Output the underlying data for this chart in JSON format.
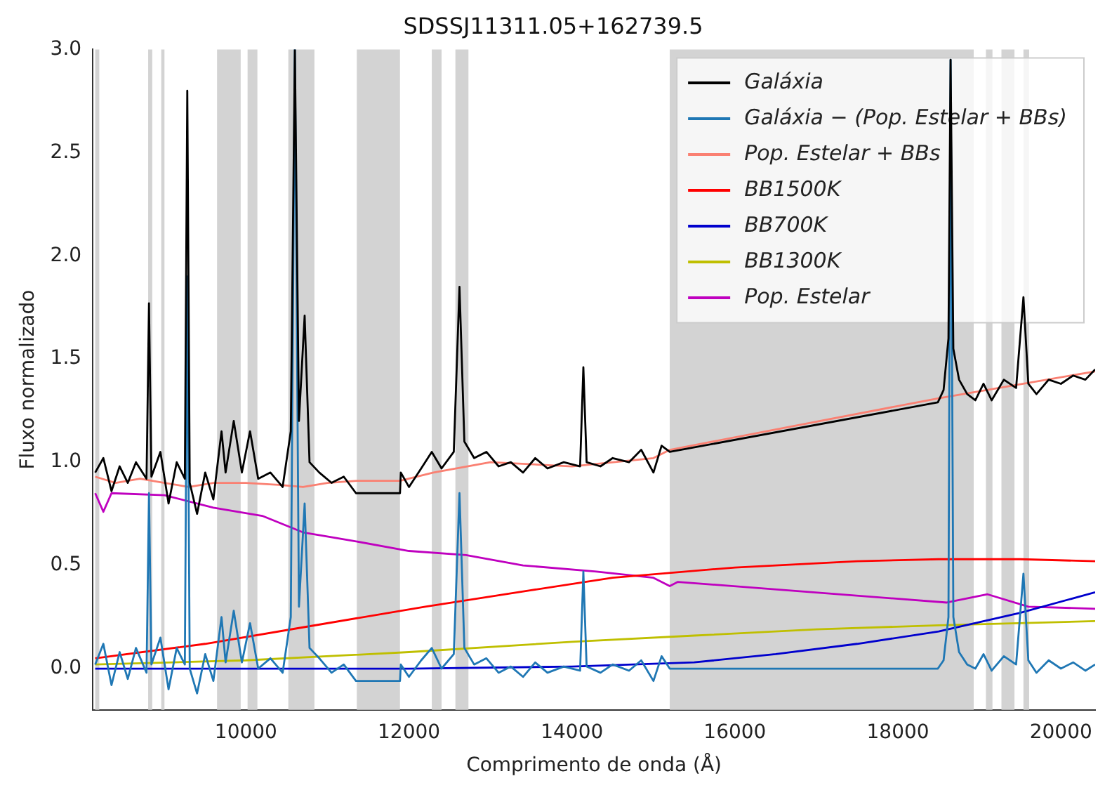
{
  "chart_data": {
    "type": "line",
    "title": "SDSSJ11311.05+162739.5",
    "xlabel": "Comprimento de onda (Å)",
    "ylabel": "Fluxo normalizado",
    "xlim": [
      8120,
      20420
    ],
    "ylim": [
      -0.2,
      3.0
    ],
    "xticks": [
      10000,
      12000,
      14000,
      16000,
      18000,
      20000
    ],
    "yticks": [
      {
        "value": 0,
        "label": "0.0"
      },
      {
        "value": 0.5,
        "label": "0.5"
      },
      {
        "value": 1,
        "label": "1.0"
      },
      {
        "value": 1.5,
        "label": "1.5"
      },
      {
        "value": 2,
        "label": "2.0"
      },
      {
        "value": 2.5,
        "label": "2.5"
      },
      {
        "value": 3,
        "label": "3.0"
      }
    ],
    "grid": false,
    "legend": "top right",
    "marker": "none",
    "line_style": "solid",
    "bands": [
      {
        "axis": "x",
        "from": 8150,
        "to": 8200,
        "color": "#d3d3d3"
      },
      {
        "axis": "x",
        "from": 8800,
        "to": 8850,
        "color": "#d3d3d3"
      },
      {
        "axis": "x",
        "from": 8960,
        "to": 9000,
        "color": "#d3d3d3"
      },
      {
        "axis": "x",
        "from": 9645,
        "to": 9935,
        "color": "#d3d3d3"
      },
      {
        "axis": "x",
        "from": 10020,
        "to": 10140,
        "color": "#d3d3d3"
      },
      {
        "axis": "x",
        "from": 10520,
        "to": 10840,
        "color": "#d3d3d3"
      },
      {
        "axis": "x",
        "from": 11360,
        "to": 11890,
        "color": "#d3d3d3"
      },
      {
        "axis": "x",
        "from": 12280,
        "to": 12400,
        "color": "#d3d3d3"
      },
      {
        "axis": "x",
        "from": 12570,
        "to": 12730,
        "color": "#d3d3d3"
      },
      {
        "axis": "x",
        "from": 15200,
        "to": 18930,
        "color": "#d3d3d3"
      },
      {
        "axis": "x",
        "from": 19080,
        "to": 19160,
        "color": "#d3d3d3"
      },
      {
        "axis": "x",
        "from": 19270,
        "to": 19430,
        "color": "#d3d3d3"
      },
      {
        "axis": "x",
        "from": 19540,
        "to": 19610,
        "color": "#d3d3d3"
      }
    ],
    "series": [
      {
        "name": "Galáxia",
        "color": "#000000",
        "x": [
          8150,
          8250,
          8350,
          8450,
          8550,
          8650,
          8780,
          8810,
          8840,
          8950,
          9050,
          9150,
          9250,
          9280,
          9310,
          9400,
          9500,
          9600,
          9700,
          9750,
          9850,
          9950,
          10050,
          10150,
          10300,
          10450,
          10550,
          10600,
          10650,
          10720,
          10780,
          10900,
          11050,
          11200,
          11350,
          11360,
          11890,
          11900,
          12000,
          12150,
          12280,
          12400,
          12550,
          12620,
          12680,
          12800,
          12950,
          13100,
          13250,
          13400,
          13550,
          13700,
          13900,
          14100,
          14140,
          14180,
          14350,
          14500,
          14700,
          14850,
          15000,
          15100,
          15200,
          18490,
          18560,
          18620,
          18646,
          18680,
          18750,
          18850,
          18950,
          19050,
          19150,
          19300,
          19450,
          19540,
          19600,
          19700,
          19850,
          20000,
          20150,
          20300,
          20420
        ],
        "values": [
          0.95,
          1.02,
          0.86,
          0.98,
          0.9,
          1.0,
          0.92,
          1.77,
          0.93,
          1.05,
          0.8,
          1.0,
          0.92,
          2.8,
          0.9,
          0.75,
          0.95,
          0.82,
          1.15,
          0.95,
          1.2,
          0.95,
          1.15,
          0.92,
          0.95,
          0.88,
          1.15,
          3.0,
          1.2,
          1.71,
          1.0,
          0.95,
          0.9,
          0.93,
          0.85,
          0.85,
          0.85,
          0.95,
          0.88,
          0.97,
          1.05,
          0.97,
          1.05,
          1.85,
          1.1,
          1.02,
          1.05,
          0.98,
          1.0,
          0.95,
          1.02,
          0.97,
          1.0,
          0.98,
          1.46,
          1.0,
          0.98,
          1.02,
          1.0,
          1.06,
          0.95,
          1.08,
          1.05,
          1.29,
          1.35,
          1.6,
          2.95,
          1.55,
          1.4,
          1.33,
          1.3,
          1.38,
          1.3,
          1.4,
          1.36,
          1.8,
          1.38,
          1.33,
          1.4,
          1.38,
          1.42,
          1.4,
          1.45
        ]
      },
      {
        "name": "Galáxia − (Pop. Estelar + BBs)",
        "color": "#1f77b4",
        "x": [
          8150,
          8250,
          8350,
          8450,
          8550,
          8650,
          8780,
          8810,
          8840,
          8950,
          9050,
          9150,
          9250,
          9280,
          9310,
          9400,
          9500,
          9600,
          9700,
          9750,
          9850,
          9950,
          10050,
          10150,
          10300,
          10450,
          10550,
          10600,
          10650,
          10720,
          10780,
          10900,
          11050,
          11200,
          11350,
          11360,
          11890,
          11900,
          12000,
          12150,
          12280,
          12400,
          12550,
          12620,
          12680,
          12800,
          12950,
          13100,
          13250,
          13400,
          13550,
          13700,
          13900,
          14100,
          14140,
          14180,
          14350,
          14500,
          14700,
          14850,
          15000,
          15100,
          15200,
          18490,
          18560,
          18620,
          18646,
          18680,
          18750,
          18850,
          18950,
          19050,
          19150,
          19300,
          19450,
          19540,
          19600,
          19700,
          19850,
          20000,
          20150,
          20300,
          20420
        ],
        "values": [
          0.02,
          0.12,
          -0.08,
          0.08,
          -0.05,
          0.1,
          -0.02,
          0.85,
          0.02,
          0.15,
          -0.1,
          0.1,
          0.02,
          1.9,
          0.0,
          -0.12,
          0.07,
          -0.06,
          0.25,
          0.03,
          0.28,
          0.03,
          0.22,
          0.0,
          0.05,
          -0.02,
          0.25,
          3.0,
          0.3,
          0.8,
          0.1,
          0.05,
          -0.02,
          0.02,
          -0.06,
          -0.06,
          -0.06,
          0.02,
          -0.04,
          0.04,
          0.1,
          0.0,
          0.07,
          0.85,
          0.1,
          0.02,
          0.05,
          -0.02,
          0.01,
          -0.04,
          0.03,
          -0.02,
          0.01,
          -0.01,
          0.47,
          0.01,
          -0.02,
          0.02,
          -0.01,
          0.04,
          -0.06,
          0.06,
          0.0,
          0.0,
          0.04,
          0.25,
          2.95,
          0.25,
          0.08,
          0.02,
          0.0,
          0.07,
          -0.01,
          0.06,
          0.02,
          0.46,
          0.04,
          -0.02,
          0.04,
          0.0,
          0.03,
          -0.01,
          0.02
        ]
      },
      {
        "name": "Pop. Estelar + BBs",
        "color": "#fa8072",
        "x": [
          8150,
          8400,
          8700,
          9000,
          9300,
          9600,
          10000,
          10400,
          10700,
          11000,
          11360,
          11890,
          12300,
          13000,
          14000,
          15000,
          15200,
          18500,
          20420
        ],
        "values": [
          0.93,
          0.9,
          0.92,
          0.9,
          0.88,
          0.9,
          0.9,
          0.89,
          0.88,
          0.9,
          0.91,
          0.91,
          0.95,
          1.0,
          0.98,
          1.02,
          1.06,
          1.31,
          1.44
        ]
      },
      {
        "name": "BB1500K",
        "color": "#ff0000",
        "x": [
          8150,
          9500,
          10700,
          12200,
          13500,
          14500,
          16000,
          17500,
          18500,
          19500,
          20420
        ],
        "values": [
          0.05,
          0.12,
          0.2,
          0.3,
          0.38,
          0.44,
          0.49,
          0.52,
          0.53,
          0.53,
          0.52
        ]
      },
      {
        "name": "BB700K",
        "color": "#0000cd",
        "x": [
          8150,
          10000,
          12000,
          14000,
          15500,
          16500,
          17500,
          18500,
          19500,
          20420
        ],
        "values": [
          0.0,
          0.0,
          0.0,
          0.01,
          0.03,
          0.07,
          0.12,
          0.18,
          0.27,
          0.37
        ]
      },
      {
        "name": "BB1300K",
        "color": "#bfbf00",
        "x": [
          8150,
          10000,
          12000,
          14000,
          15500,
          17000,
          18500,
          20420
        ],
        "values": [
          0.02,
          0.04,
          0.08,
          0.13,
          0.16,
          0.19,
          0.21,
          0.23
        ]
      },
      {
        "name": "Pop. Estelar",
        "color": "#bf00bf",
        "x": [
          8150,
          8250,
          8350,
          9000,
          9600,
          10200,
          10700,
          11300,
          12000,
          12700,
          13400,
          14300,
          15000,
          15200,
          15300,
          18600,
          19100,
          19600,
          20420
        ],
        "values": [
          0.85,
          0.76,
          0.85,
          0.84,
          0.78,
          0.74,
          0.66,
          0.62,
          0.57,
          0.55,
          0.5,
          0.47,
          0.44,
          0.4,
          0.42,
          0.32,
          0.36,
          0.3,
          0.29
        ]
      }
    ]
  }
}
